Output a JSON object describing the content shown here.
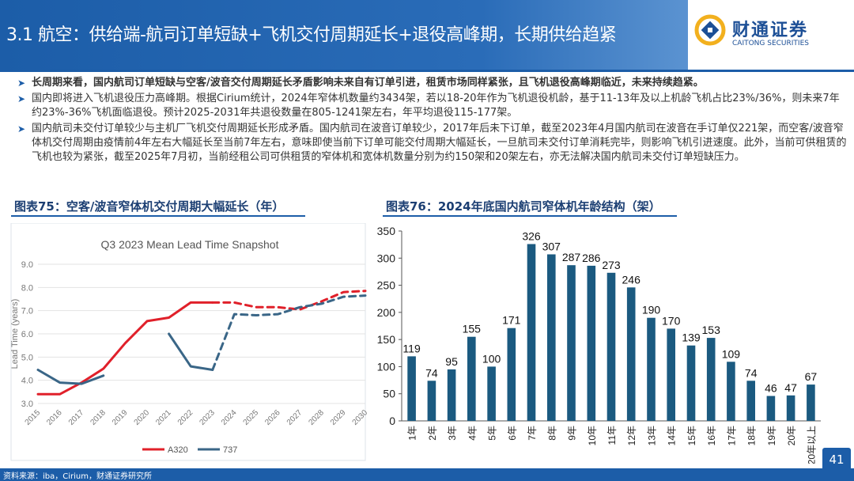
{
  "slide": {
    "title": "3.1 航空：供给端-航司订单短缺+飞机交付周期延长+退役高峰期，长期供给趋紧",
    "page_number": "41"
  },
  "logo": {
    "name_cn": "财通证券",
    "name_en": "CAITONG SECURITIES"
  },
  "bullets": [
    {
      "text": "长周期来看，国内航司订单短缺与空客/波音交付周期延长矛盾影响未来自有订单引进，租赁市场同样紧张，且飞机退役高峰期临近，未来持续趋紧。"
    },
    {
      "text": "国内即将进入飞机退役压力高峰期。根据Cirium统计，2024年窄体机数量约3434架，若以18-20年作为飞机退役机龄，基于11-13年及以上机龄飞机占比23%/36%，则未来7年约23%-36%飞机面临退役。预计2025-2031年共退役数量在805-1241架左右，年平均退役115-177架。"
    },
    {
      "text": "国内航司未交付订单较少与主机厂飞机交付周期延长形成矛盾。国内航司在波音订单较少，2017年后未下订单，截至2023年4月国内航司在波音在手订单仅221架，而空客/波音窄体机交付周期由疫情前4年左右大幅延长至当前7年左右，意味即使当前下订单可能交付周期大幅延长，一旦航司未交付订单消耗完毕，则影响飞机引进速度。此外，当前可供租赁的飞机也较为紧张，截至2025年7月初，当前经租公司可供租赁的窄体机和宽体机数量分别为约150架和20架左右，亦无法解决国内航司未交付订单短缺压力。"
    }
  ],
  "figures": {
    "left_title": "图表75：空客/波音窄体机交付周期大幅延长（年）",
    "right_title": "图表76：2024年底国内航司窄体机年龄结构（架）"
  },
  "source": "资料来源：iba，Cirium，财通证券研究所",
  "colors": {
    "primary": "#1c5da8",
    "a320": "#e0202a",
    "b737": "#3a6687",
    "bar": "#1b5a80"
  },
  "chart_data": [
    {
      "type": "line",
      "title": "Q3 2023 Mean Lead Time Snapshot",
      "ylabel": "Lead Time (years)",
      "xlabel": "",
      "x": [
        "2015",
        "2016",
        "2017",
        "2018",
        "2019",
        "2020",
        "2021",
        "2022",
        "2023",
        "2024",
        "2025",
        "2026",
        "2027",
        "2028",
        "2029",
        "2030"
      ],
      "ylim": [
        3.0,
        9.0
      ],
      "yticks": [
        "3.0",
        "4.0",
        "5.0",
        "6.0",
        "7.0",
        "8.0",
        "9.0"
      ],
      "legend_position": "bottom",
      "series": [
        {
          "name": "A320",
          "actual": [
            [
              2015,
              3.4
            ],
            [
              2016,
              3.4
            ],
            [
              2017,
              3.9
            ],
            [
              2018,
              4.5
            ],
            [
              2019,
              5.6
            ],
            [
              2020,
              6.55
            ],
            [
              2021,
              6.7
            ],
            [
              2022,
              7.35
            ],
            [
              2023,
              7.35
            ]
          ],
          "forecast": [
            [
              2023,
              7.35
            ],
            [
              2024,
              7.35
            ],
            [
              2025,
              7.15
            ],
            [
              2026,
              7.15
            ],
            [
              2027,
              7.05
            ],
            [
              2028,
              7.4
            ],
            [
              2029,
              7.8
            ],
            [
              2030,
              7.85
            ]
          ]
        },
        {
          "name": "737",
          "actual_segments": [
            [
              [
                2015,
                4.45
              ],
              [
                2016,
                3.9
              ],
              [
                2017,
                3.85
              ],
              [
                2018,
                4.2
              ]
            ],
            [
              [
                2021,
                6.0
              ],
              [
                2022,
                4.6
              ],
              [
                2023,
                4.45
              ]
            ]
          ],
          "forecast": [
            [
              2023,
              4.45
            ],
            [
              2024,
              6.85
            ],
            [
              2025,
              6.8
            ],
            [
              2026,
              6.85
            ],
            [
              2027,
              7.15
            ],
            [
              2028,
              7.3
            ],
            [
              2029,
              7.6
            ],
            [
              2030,
              7.65
            ]
          ]
        }
      ]
    },
    {
      "type": "bar",
      "title": "",
      "categories": [
        "1年",
        "2年",
        "3年",
        "4年",
        "5年",
        "6年",
        "7年",
        "8年",
        "9年",
        "10年",
        "11年",
        "12年",
        "13年",
        "14年",
        "15年",
        "16年",
        "17年",
        "18年",
        "19年",
        "20年",
        "20年以上"
      ],
      "values": [
        119,
        74,
        95,
        155,
        100,
        171,
        326,
        307,
        287,
        286,
        273,
        246,
        190,
        170,
        139,
        153,
        109,
        74,
        46,
        47,
        67
      ],
      "ylim": [
        0,
        350
      ],
      "yticks": [
        "0",
        "50",
        "100",
        "150",
        "200",
        "250",
        "300",
        "350"
      ],
      "xlabel": "",
      "ylabel": ""
    }
  ]
}
